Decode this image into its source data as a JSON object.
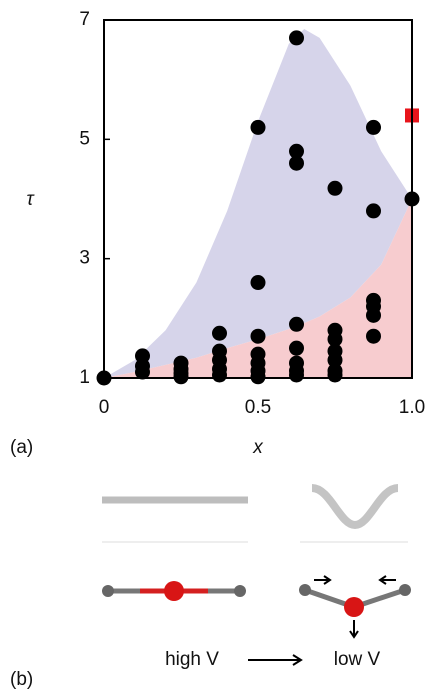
{
  "chart_data": {
    "type": "scatter",
    "panel_a_label": "(a)",
    "panel_b_label": "(b)",
    "xlabel": "x",
    "ylabel": "τ",
    "xlim": [
      0,
      1
    ],
    "ylim": [
      1,
      7
    ],
    "xticks": [
      0,
      0.5,
      {
        "value": 1,
        "label": "1.0"
      }
    ],
    "yticks": [
      1,
      3,
      5,
      7
    ],
    "color": "#000000",
    "x": [
      0,
      0.125,
      0.125,
      0.125,
      0.25,
      0.25,
      0.25,
      0.25,
      0.375,
      0.375,
      0.375,
      0.375,
      0.375,
      0.5,
      0.5,
      0.5,
      0.5,
      0.5,
      0.5,
      0.5,
      0.625,
      0.625,
      0.625,
      0.625,
      0.625,
      0.625,
      0.625,
      0.625,
      0.75,
      0.75,
      0.75,
      0.75,
      0.75,
      0.75,
      0.75,
      0.875,
      0.875,
      0.875,
      0.875,
      0.875,
      0.875,
      1
    ],
    "values": [
      1,
      1.37,
      1.2,
      1.1,
      1.25,
      1.15,
      1.08,
      1.02,
      1.75,
      1.45,
      1.3,
      1.15,
      1.05,
      5.2,
      2.6,
      1.7,
      1.4,
      1.25,
      1.12,
      1.02,
      6.7,
      4.8,
      4.6,
      1.9,
      1.5,
      1.25,
      1.12,
      1.05,
      4.18,
      1.8,
      1.65,
      1.45,
      1.3,
      1.12,
      1.05,
      5.2,
      3.8,
      2.3,
      2.2,
      2.05,
      1.7,
      4
    ],
    "highlight": {
      "x": 1,
      "y": 5.4,
      "color": "#e8141b"
    },
    "regions": [
      {
        "color": "#d6d4ea",
        "x": [
          0,
          0.1,
          0.2,
          0.3,
          0.4,
          0.5,
          0.6,
          0.65,
          0.7,
          0.8,
          0.9,
          1
        ],
        "upper": [
          1,
          1.3,
          1.8,
          2.6,
          3.8,
          5.3,
          6.6,
          6.85,
          6.7,
          5.9,
          4.8,
          4
        ],
        "lower": [
          1,
          1.1,
          1.22,
          1.34,
          1.5,
          1.65,
          1.82,
          1.92,
          2.03,
          2.35,
          2.9,
          4
        ]
      },
      {
        "color": "#f7cccf",
        "x": [
          0,
          0.1,
          0.2,
          0.3,
          0.4,
          0.5,
          0.6,
          0.65,
          0.7,
          0.8,
          0.9,
          1
        ],
        "upper": [
          1,
          1.1,
          1.22,
          1.34,
          1.5,
          1.65,
          1.82,
          1.92,
          2.03,
          2.35,
          2.9,
          4
        ],
        "lower": [
          1,
          1,
          1,
          1,
          1,
          1,
          1,
          1,
          1,
          1,
          1,
          1
        ]
      }
    ],
    "high_label": "high V",
    "low_label": "low V"
  }
}
